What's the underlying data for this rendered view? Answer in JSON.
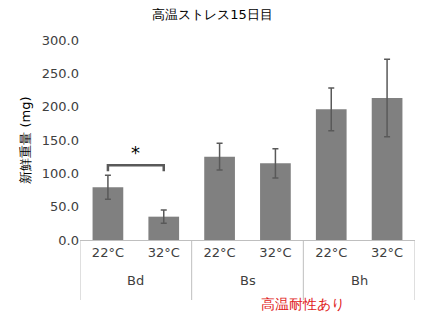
{
  "chart_data": {
    "type": "bar",
    "title": "高温ストレス15日目",
    "y_label": "新鮮重量 (mg)",
    "categories": [
      "22°C",
      "32°C",
      "22°C",
      "32°C",
      "22°C",
      "32°C"
    ],
    "group_labels": [
      "Bd",
      "Bd",
      "Bs",
      "Bs",
      "Bh",
      "Bh"
    ],
    "values": [
      79,
      35,
      125,
      115,
      196,
      213
    ],
    "errors": [
      18,
      10,
      20,
      22,
      32,
      58
    ],
    "color": "#808080",
    "ylim": [
      0,
      300
    ],
    "yticks": [
      {
        "value": 0,
        "label": "0.0"
      },
      {
        "value": 50,
        "label": "50.0"
      },
      {
        "value": 100,
        "label": "100.0"
      },
      {
        "value": 150,
        "label": "150.0"
      },
      {
        "value": 200,
        "label": "200.0"
      },
      {
        "value": 250,
        "label": "250.0"
      },
      {
        "value": 300,
        "label": "300.0"
      }
    ],
    "grid": false,
    "significance": [
      {
        "group": "Bd",
        "label": "*"
      }
    ],
    "annotations": [
      {
        "text": "高温耐性あり",
        "groups": [
          "Bs",
          "Bh"
        ],
        "color": "#e02020"
      }
    ]
  }
}
